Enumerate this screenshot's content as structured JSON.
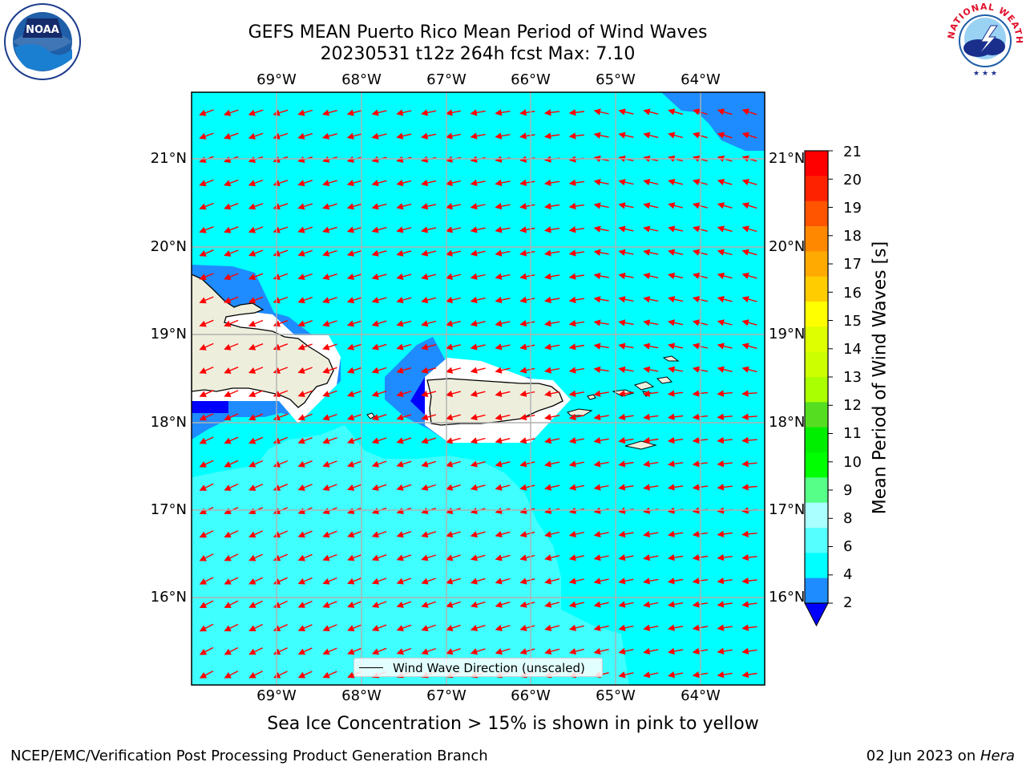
{
  "title": {
    "line1": "GEFS MEAN Puerto Rico Mean Period of Wind Waves",
    "line2": "20230531 t12z 264h fcst   Max: 7.10"
  },
  "map": {
    "lon_labels": [
      "69°W",
      "68°W",
      "67°W",
      "66°W",
      "65°W",
      "64°W"
    ],
    "lat_labels": [
      "21°N",
      "20°N",
      "19°N",
      "18°N",
      "17°N",
      "16°N"
    ],
    "legend": "Wind Wave Direction (unscaled)",
    "vector_color": "#ff0000",
    "land_color": "#eeeedd",
    "colors": {
      "band_2_4": "#1e8cff",
      "band_4_6": "#00ffff",
      "band_6_8": "#40ffff",
      "under": "#0000ff"
    }
  },
  "colorbar": {
    "label": "Mean Period of Wind Waves [s]",
    "ticks": [
      "21",
      "20",
      "19",
      "18",
      "17",
      "16",
      "15",
      "14",
      "13",
      "12",
      "11",
      "10",
      "9",
      "8",
      "6",
      "4",
      "2"
    ],
    "colors": [
      "#ff0000",
      "#ff2200",
      "#ff5500",
      "#ff8800",
      "#ffaa00",
      "#ffcc00",
      "#ffff00",
      "#ddff00",
      "#ccff00",
      "#aaff00",
      "#55dd22",
      "#00ee00",
      "#00ff00",
      "#55ff88",
      "#aaffff",
      "#55ffff",
      "#00ffff",
      "#1e8cff"
    ],
    "under_color": "#0000ff"
  },
  "note": "Sea Ice Concentration > 15% is shown in pink to yellow",
  "footer": {
    "left": "NCEP/EMC/Verification Post Processing Product Generation Branch",
    "right_date": "02 Jun 2023 on ",
    "right_host": "Hera"
  },
  "logos": {
    "left": "NOAA",
    "right": "NATIONAL WEATHER SERVICE"
  }
}
